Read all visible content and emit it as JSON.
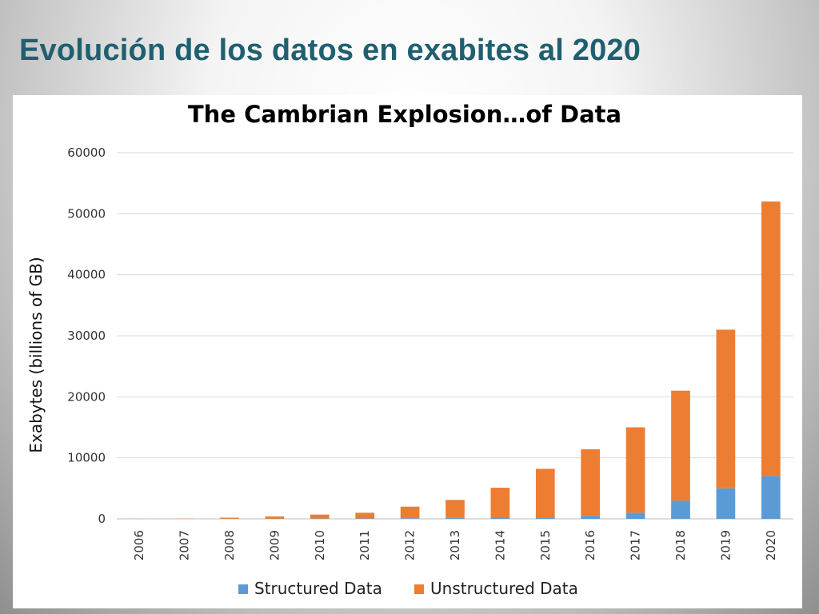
{
  "slide": {
    "title": "Evolución de los datos en exabites al 2020"
  },
  "chart_data": {
    "type": "bar",
    "stacked": true,
    "title": "The Cambrian Explosion…of Data",
    "xlabel": "",
    "ylabel": "Exabytes (billions of GB)",
    "ylim": [
      0,
      60000
    ],
    "yticks": [
      0,
      10000,
      20000,
      30000,
      40000,
      50000,
      60000
    ],
    "grid": true,
    "legend_position": "bottom",
    "categories": [
      "2006",
      "2007",
      "2008",
      "2009",
      "2010",
      "2011",
      "2012",
      "2013",
      "2014",
      "2015",
      "2016",
      "2017",
      "2018",
      "2019",
      "2020"
    ],
    "series": [
      {
        "name": "Structured Data",
        "color": "#5b9bd5",
        "values": [
          5,
          10,
          20,
          30,
          50,
          70,
          100,
          150,
          200,
          250,
          500,
          1000,
          3000,
          5000,
          7000
        ]
      },
      {
        "name": "Unstructured Data",
        "color": "#ed7d31",
        "values": [
          15,
          40,
          180,
          370,
          650,
          930,
          1900,
          2950,
          4900,
          7950,
          10900,
          14000,
          18000,
          26000,
          45000
        ]
      }
    ]
  }
}
